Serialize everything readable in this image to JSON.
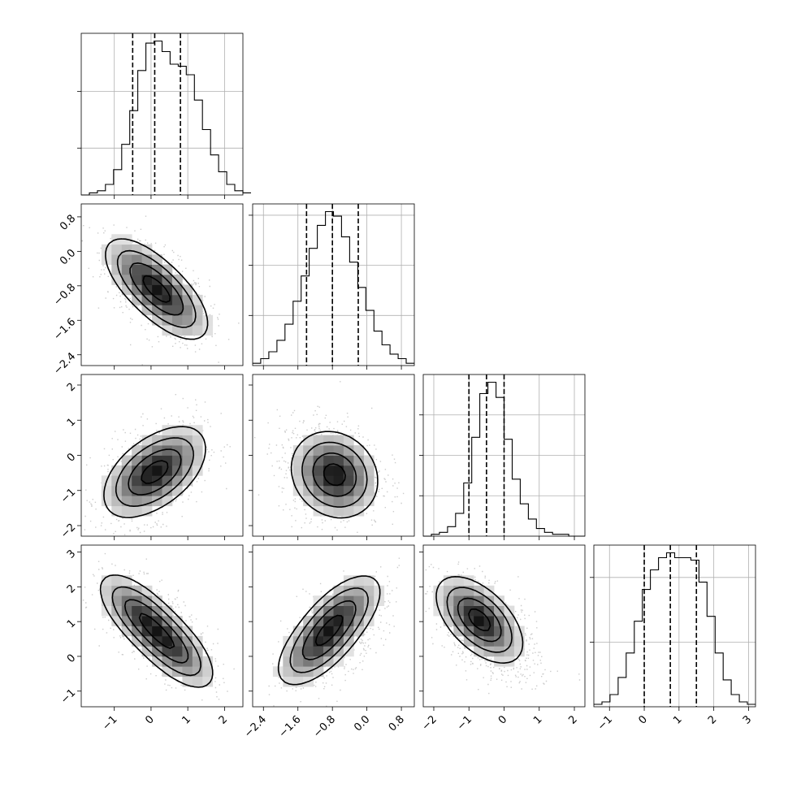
{
  "chart_data": {
    "type": "corner",
    "grid": true,
    "parameters": [
      {
        "range": [
          -1.9,
          2.5
        ],
        "ticks": [
          -1,
          0,
          1,
          2
        ],
        "tick_labels": [
          "−1",
          "0",
          "1",
          "2"
        ],
        "quantiles": [
          -0.5,
          0.1,
          0.8
        ],
        "hist_bins": {
          "edges_start": -1.9,
          "bin_width": 0.22,
          "heights": [
            0,
            1,
            2,
            5,
            12,
            24,
            40,
            59,
            72,
            73,
            68,
            62,
            61,
            57,
            45,
            31,
            19,
            11,
            5,
            2,
            1
          ]
        }
      },
      {
        "range": [
          -2.65,
          1.1
        ],
        "ticks": [
          -2.4,
          -1.6,
          -0.8,
          0.0,
          0.8
        ],
        "tick_labels": [
          "−2.4",
          "−1.6",
          "−0.8",
          "0.0",
          "0.8"
        ],
        "quantiles": [
          -1.4,
          -0.8,
          -0.2
        ],
        "hist_bins": {
          "edges_start": -2.65,
          "bin_width": 0.1875,
          "heights": [
            1,
            3,
            6,
            11,
            18,
            28,
            39,
            51,
            61,
            67,
            65,
            56,
            45,
            34,
            24,
            15,
            9,
            5,
            3,
            1
          ]
        }
      },
      {
        "range": [
          -2.3,
          2.3
        ],
        "ticks": [
          -2,
          -1,
          0,
          1,
          2
        ],
        "tick_labels": [
          "−2",
          "−1",
          "0",
          "1",
          "2"
        ],
        "quantiles": [
          -1.0,
          -0.5,
          0.0
        ],
        "hist_bins": {
          "edges_start": -2.3,
          "bin_width": 0.23,
          "heights": [
            0,
            1,
            2,
            5,
            12,
            28,
            52,
            75,
            81,
            73,
            51,
            30,
            17,
            9,
            4,
            2,
            1,
            1,
            0,
            0
          ]
        }
      },
      {
        "range": [
          -1.45,
          3.2
        ],
        "ticks": [
          -1,
          0,
          1,
          2,
          3
        ],
        "tick_labels": [
          "−1",
          "0",
          "1",
          "2",
          "3"
        ],
        "quantiles": [
          0.0,
          0.75,
          1.5
        ],
        "hist_bins": {
          "edges_start": -1.45,
          "bin_width": 0.2325,
          "heights": [
            1,
            2,
            5,
            12,
            22,
            35,
            48,
            56,
            61,
            63,
            61,
            61,
            60,
            51,
            37,
            22,
            11,
            5,
            2,
            1
          ]
        }
      }
    ],
    "histogram_y_ticks": {
      "panel_1": [
        0.29,
        0.64
      ],
      "panel_2": [
        0.31,
        0.62,
        0.93
      ],
      "panel_3": [
        0.25,
        0.5,
        0.75
      ],
      "panel_4": [
        0.4,
        0.8
      ]
    },
    "pairs": [
      {
        "x_param": 1,
        "y_param": 2,
        "x_center": 0.15,
        "y_center": -0.9,
        "rho": -0.6,
        "modes": [
          [
            -0.2,
            -0.6
          ],
          [
            0.5,
            -1.15
          ]
        ]
      },
      {
        "x_param": 1,
        "y_param": 3,
        "x_center": 0.05,
        "y_center": -0.45,
        "rho": 0.45,
        "modes": [
          [
            -0.25,
            -0.65
          ],
          [
            0.45,
            -0.3
          ]
        ]
      },
      {
        "x_param": 2,
        "y_param": 3,
        "x_center": -0.85,
        "y_center": -0.45,
        "rho": -0.15,
        "modes": [
          [
            -0.75,
            -0.55
          ]
        ]
      },
      {
        "x_param": 1,
        "y_param": 4,
        "x_center": 0.15,
        "y_center": 0.75,
        "rho": -0.65,
        "modes": [
          [
            -0.3,
            1.2
          ],
          [
            0.6,
            0.25
          ]
        ]
      },
      {
        "x_param": 2,
        "y_param": 4,
        "x_center": -0.75,
        "y_center": 0.7,
        "rho": 0.6,
        "modes": [
          [
            -1.15,
            0.3
          ],
          [
            -0.6,
            1.2
          ]
        ]
      },
      {
        "x_param": 3,
        "y_param": 4,
        "x_center": -0.5,
        "y_center": 0.75,
        "rho": -0.55,
        "modes": [
          [
            -0.7,
            1.05
          ]
        ]
      }
    ],
    "contour_levels_sigma": [
      0.5,
      1.0,
      1.5,
      2.0
    ]
  }
}
